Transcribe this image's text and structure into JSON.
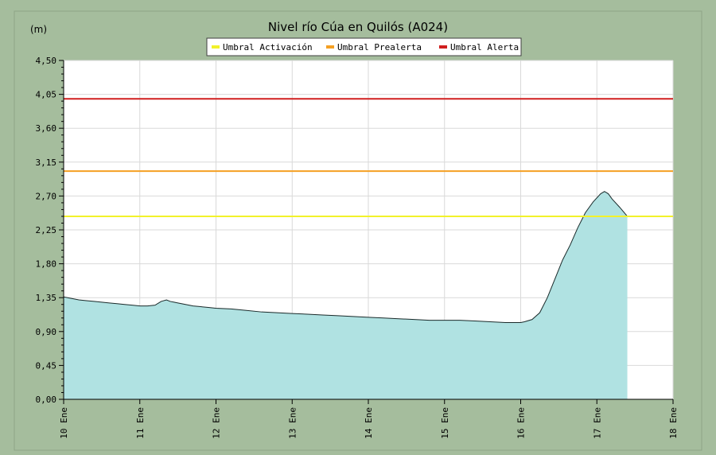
{
  "chart_data": {
    "type": "area",
    "title": "Nivel río Cúa en Quilós  (A024)",
    "ylabel": "(m)",
    "xlabel": "",
    "ylim": [
      0,
      4.5
    ],
    "xlim": [
      0,
      8
    ],
    "y_ticks": [
      "0,00",
      "0,45",
      "0,90",
      "1,35",
      "1,80",
      "2,25",
      "2,70",
      "3,15",
      "3,60",
      "4,05",
      "4,50"
    ],
    "x_ticks": [
      "10 Ene",
      "11 Ene",
      "12 Ene",
      "13 Ene",
      "14 Ene",
      "15 Ene",
      "16 Ene",
      "17 Ene",
      "18 Ene"
    ],
    "grid": true,
    "legend_position": "top-center",
    "series": [
      {
        "color": "#b0e2e2",
        "line_color": "#1a2a2a",
        "x": [
          0,
          0.1,
          0.2,
          0.3,
          0.4,
          0.5,
          0.6,
          0.7,
          0.8,
          0.9,
          1.0,
          1.1,
          1.2,
          1.28,
          1.35,
          1.4,
          1.45,
          1.5,
          1.6,
          1.7,
          1.8,
          1.9,
          2.0,
          2.2,
          2.4,
          2.6,
          2.8,
          3.0,
          3.2,
          3.4,
          3.6,
          3.8,
          4.0,
          4.2,
          4.4,
          4.6,
          4.8,
          5.0,
          5.2,
          5.4,
          5.6,
          5.8,
          6.0,
          6.05,
          6.15,
          6.25,
          6.35,
          6.45,
          6.55,
          6.65,
          6.75,
          6.85,
          6.95,
          7.05,
          7.1,
          7.15,
          7.2,
          7.3,
          7.4
        ],
        "values": [
          1.36,
          1.34,
          1.32,
          1.31,
          1.3,
          1.29,
          1.28,
          1.27,
          1.26,
          1.25,
          1.24,
          1.24,
          1.25,
          1.3,
          1.32,
          1.3,
          1.29,
          1.28,
          1.26,
          1.24,
          1.23,
          1.22,
          1.21,
          1.2,
          1.18,
          1.16,
          1.15,
          1.14,
          1.13,
          1.12,
          1.11,
          1.1,
          1.09,
          1.08,
          1.07,
          1.06,
          1.05,
          1.05,
          1.05,
          1.04,
          1.03,
          1.02,
          1.02,
          1.03,
          1.06,
          1.15,
          1.35,
          1.6,
          1.85,
          2.05,
          2.28,
          2.48,
          2.62,
          2.73,
          2.76,
          2.73,
          2.66,
          2.55,
          2.43
        ]
      }
    ],
    "thresholds": [
      {
        "name": "Umbral Activación",
        "value": 2.43,
        "color": "#f2f22a"
      },
      {
        "name": "Umbral Prealerta",
        "value": 3.03,
        "color": "#f5a023"
      },
      {
        "name": "Umbral Alerta",
        "value": 3.99,
        "color": "#d01f1f"
      }
    ],
    "colors": {
      "frame": "#a5bd9d",
      "plot_bg": "#ffffff",
      "grid": "#d9d9d9"
    }
  }
}
